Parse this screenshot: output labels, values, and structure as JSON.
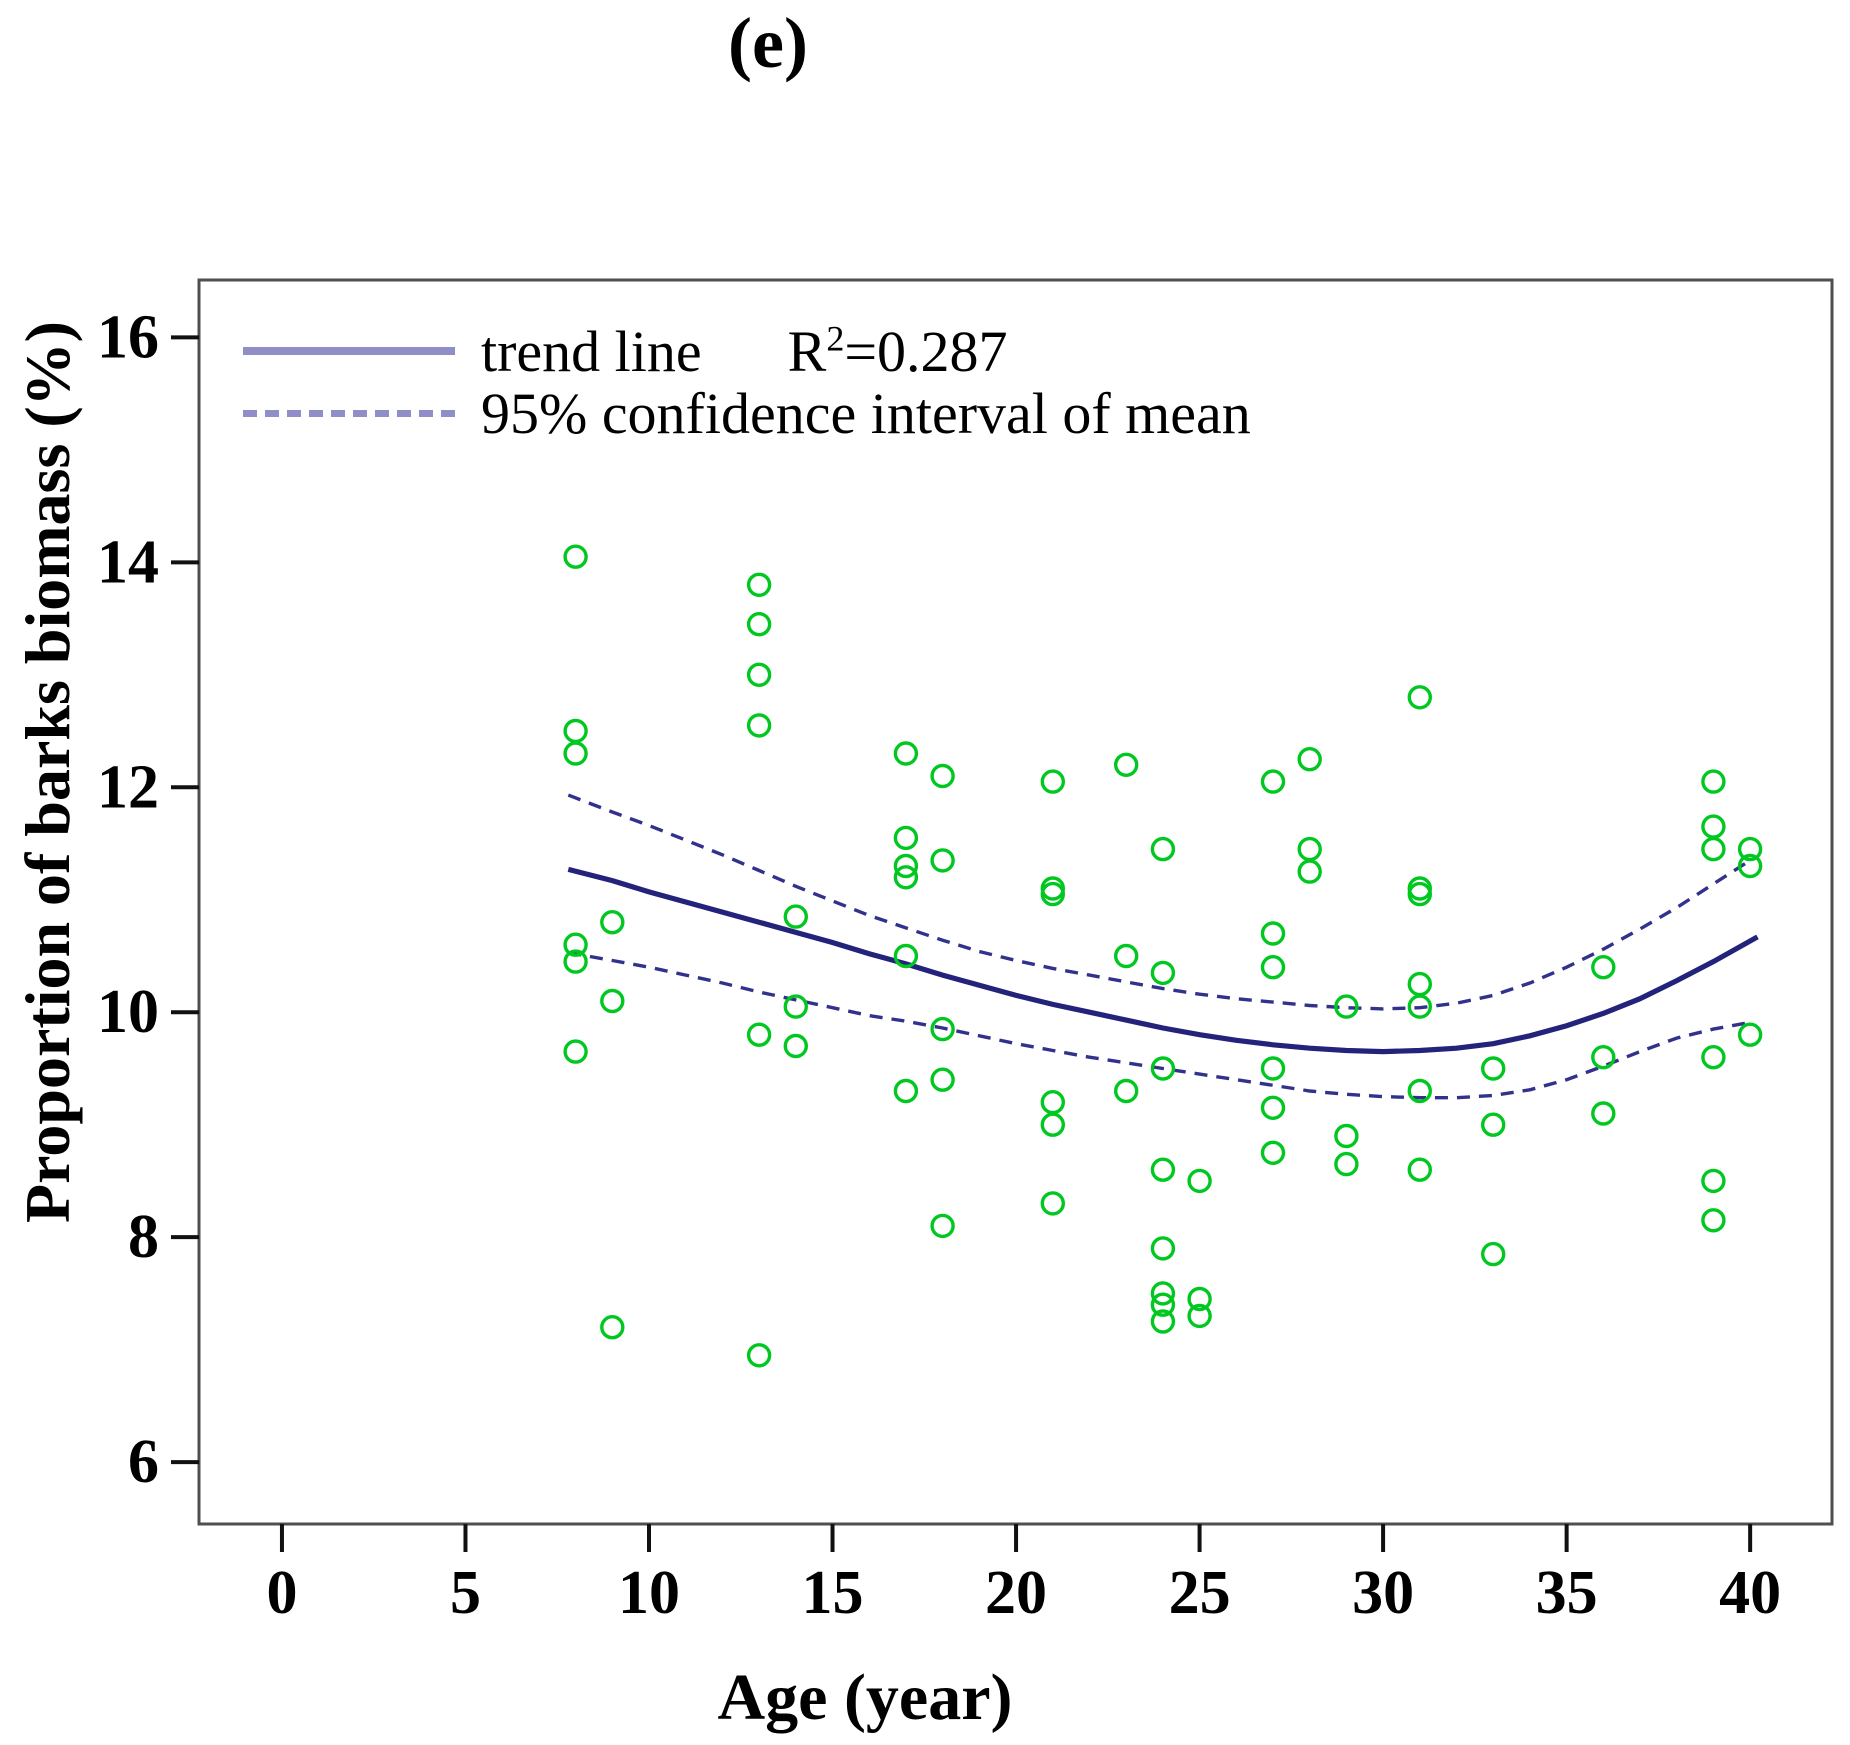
{
  "title": "(e)",
  "axes": {
    "x": {
      "label": "Age (year)",
      "ticks": [
        0,
        5,
        10,
        15,
        20,
        25,
        30,
        35,
        40
      ]
    },
    "y": {
      "label": "Proportion of barks biomass (%)",
      "ticks": [
        6,
        8,
        10,
        12,
        14,
        16
      ]
    }
  },
  "legend": {
    "items": [
      {
        "label": "trend line",
        "style": "solid",
        "r2": {
          "base": "R",
          "sup": "2",
          "rest": "=0.287"
        }
      },
      {
        "label": "95% confidence interval of mean",
        "style": "dashed"
      }
    ]
  },
  "colors": {
    "green": "#00C820",
    "trend": "#23237C",
    "ci": "#32328C",
    "legend_sample": "#8F8EC6",
    "border": "#4F4F4F",
    "tick": "#111111"
  },
  "chart_data": {
    "type": "scatter",
    "title": "(e)",
    "xlabel": "Age (year)",
    "ylabel": "Proportion of barks biomass (%)",
    "xlim": [
      -2.26,
      42.23
    ],
    "ylim": [
      5.45,
      16.51
    ],
    "grid": false,
    "legend_position": "top-left-inside",
    "r_squared": 0.287,
    "series": [
      {
        "name": "observations",
        "type": "scatter",
        "marker": "open-circle",
        "points": [
          [
            8,
            14.05
          ],
          [
            8,
            12.5
          ],
          [
            8,
            12.3
          ],
          [
            8,
            10.6
          ],
          [
            8,
            10.45
          ],
          [
            8,
            9.65
          ],
          [
            9,
            10.8
          ],
          [
            9,
            10.1
          ],
          [
            9,
            7.2
          ],
          [
            13,
            13.8
          ],
          [
            13,
            13.45
          ],
          [
            13,
            13.0
          ],
          [
            13,
            12.55
          ],
          [
            13,
            9.8
          ],
          [
            13,
            6.95
          ],
          [
            14,
            10.85
          ],
          [
            14,
            10.05
          ],
          [
            14,
            9.7
          ],
          [
            17,
            12.3
          ],
          [
            17,
            11.55
          ],
          [
            17,
            11.3
          ],
          [
            17,
            11.2
          ],
          [
            17,
            10.5
          ],
          [
            17,
            9.3
          ],
          [
            18,
            12.1
          ],
          [
            18,
            11.35
          ],
          [
            18,
            9.85
          ],
          [
            18,
            9.4
          ],
          [
            18,
            8.1
          ],
          [
            21,
            12.05
          ],
          [
            21,
            11.1
          ],
          [
            21,
            11.05
          ],
          [
            21,
            9.2
          ],
          [
            21,
            9.0
          ],
          [
            21,
            8.3
          ],
          [
            23,
            12.2
          ],
          [
            23,
            10.5
          ],
          [
            23,
            9.3
          ],
          [
            24,
            11.45
          ],
          [
            24,
            10.35
          ],
          [
            24,
            9.5
          ],
          [
            24,
            8.6
          ],
          [
            24,
            7.9
          ],
          [
            24,
            7.5
          ],
          [
            24,
            7.4
          ],
          [
            24,
            7.25
          ],
          [
            25,
            8.5
          ],
          [
            25,
            7.45
          ],
          [
            25,
            7.3
          ],
          [
            27,
            12.05
          ],
          [
            27,
            10.7
          ],
          [
            27,
            10.4
          ],
          [
            27,
            9.5
          ],
          [
            27,
            9.15
          ],
          [
            27,
            8.75
          ],
          [
            28,
            12.25
          ],
          [
            28,
            11.45
          ],
          [
            28,
            11.25
          ],
          [
            29,
            10.05
          ],
          [
            29,
            8.9
          ],
          [
            29,
            8.65
          ],
          [
            31,
            12.8
          ],
          [
            31,
            11.1
          ],
          [
            31,
            11.05
          ],
          [
            31,
            10.25
          ],
          [
            31,
            10.05
          ],
          [
            31,
            9.3
          ],
          [
            31,
            8.6
          ],
          [
            33,
            9.5
          ],
          [
            33,
            9.0
          ],
          [
            33,
            7.85
          ],
          [
            36,
            10.4
          ],
          [
            36,
            9.6
          ],
          [
            36,
            9.1
          ],
          [
            39,
            12.05
          ],
          [
            39,
            11.65
          ],
          [
            39,
            11.45
          ],
          [
            39,
            9.6
          ],
          [
            39,
            8.5
          ],
          [
            39,
            8.15
          ],
          [
            40,
            11.45
          ],
          [
            40,
            11.3
          ],
          [
            40,
            9.8
          ]
        ]
      },
      {
        "name": "trend line",
        "type": "line",
        "points": [
          [
            7.8,
            11.27
          ],
          [
            9,
            11.17
          ],
          [
            10,
            11.07
          ],
          [
            11,
            10.98
          ],
          [
            12,
            10.89
          ],
          [
            13,
            10.8
          ],
          [
            14,
            10.71
          ],
          [
            15,
            10.62
          ],
          [
            16,
            10.52
          ],
          [
            17,
            10.43
          ],
          [
            18,
            10.33
          ],
          [
            19,
            10.24
          ],
          [
            20,
            10.15
          ],
          [
            21,
            10.07
          ],
          [
            22,
            10.0
          ],
          [
            23,
            9.93
          ],
          [
            24,
            9.86
          ],
          [
            25,
            9.8
          ],
          [
            26,
            9.75
          ],
          [
            27,
            9.71
          ],
          [
            28,
            9.68
          ],
          [
            29,
            9.66
          ],
          [
            30,
            9.65
          ],
          [
            31,
            9.66
          ],
          [
            32,
            9.68
          ],
          [
            33,
            9.72
          ],
          [
            34,
            9.79
          ],
          [
            35,
            9.88
          ],
          [
            36,
            9.99
          ],
          [
            37,
            10.12
          ],
          [
            38,
            10.28
          ],
          [
            39,
            10.45
          ],
          [
            40.2,
            10.67
          ]
        ]
      },
      {
        "name": "95% confidence interval of mean (upper)",
        "type": "dashed-line",
        "points": [
          [
            7.8,
            11.93
          ],
          [
            9,
            11.78
          ],
          [
            10,
            11.66
          ],
          [
            11,
            11.53
          ],
          [
            12,
            11.4
          ],
          [
            13,
            11.26
          ],
          [
            14,
            11.12
          ],
          [
            15,
            10.99
          ],
          [
            16,
            10.86
          ],
          [
            17,
            10.75
          ],
          [
            18,
            10.64
          ],
          [
            19,
            10.54
          ],
          [
            20,
            10.46
          ],
          [
            21,
            10.39
          ],
          [
            22,
            10.33
          ],
          [
            23,
            10.27
          ],
          [
            24,
            10.21
          ],
          [
            25,
            10.16
          ],
          [
            26,
            10.12
          ],
          [
            27,
            10.09
          ],
          [
            28,
            10.06
          ],
          [
            29,
            10.04
          ],
          [
            30,
            10.03
          ],
          [
            31,
            10.04
          ],
          [
            32,
            10.08
          ],
          [
            33,
            10.15
          ],
          [
            34,
            10.26
          ],
          [
            35,
            10.4
          ],
          [
            36,
            10.56
          ],
          [
            37,
            10.74
          ],
          [
            38,
            10.93
          ],
          [
            39,
            11.14
          ],
          [
            40,
            11.35
          ]
        ]
      },
      {
        "name": "95% confidence interval of mean (lower)",
        "type": "dashed-line",
        "points": [
          [
            7.8,
            10.53
          ],
          [
            9,
            10.46
          ],
          [
            10,
            10.4
          ],
          [
            11,
            10.33
          ],
          [
            12,
            10.26
          ],
          [
            13,
            10.18
          ],
          [
            14,
            10.11
          ],
          [
            15,
            10.04
          ],
          [
            16,
            9.97
          ],
          [
            17,
            9.92
          ],
          [
            18,
            9.86
          ],
          [
            19,
            9.79
          ],
          [
            20,
            9.72
          ],
          [
            21,
            9.66
          ],
          [
            22,
            9.6
          ],
          [
            23,
            9.55
          ],
          [
            24,
            9.5
          ],
          [
            25,
            9.45
          ],
          [
            26,
            9.4
          ],
          [
            27,
            9.35
          ],
          [
            28,
            9.3
          ],
          [
            29,
            9.27
          ],
          [
            30,
            9.25
          ],
          [
            31,
            9.24
          ],
          [
            32,
            9.24
          ],
          [
            33,
            9.26
          ],
          [
            34,
            9.31
          ],
          [
            35,
            9.4
          ],
          [
            36,
            9.52
          ],
          [
            37,
            9.65
          ],
          [
            38,
            9.77
          ],
          [
            39,
            9.85
          ],
          [
            40,
            9.91
          ]
        ]
      }
    ]
  }
}
